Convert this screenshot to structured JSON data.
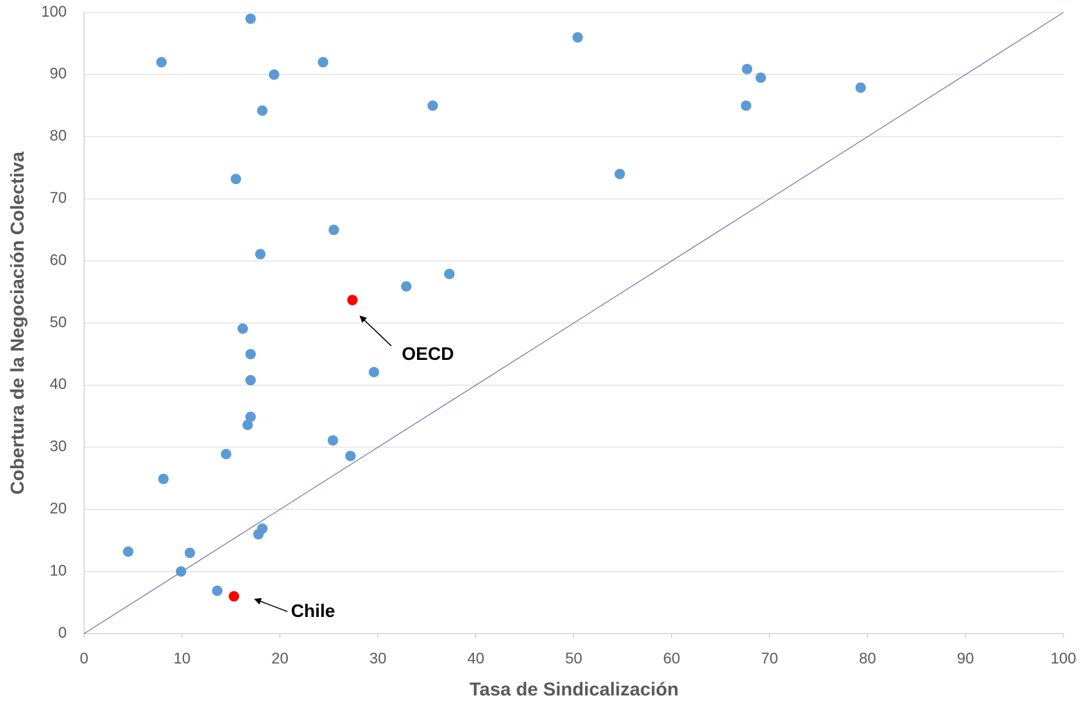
{
  "chart_data": {
    "type": "scatter",
    "x_label": "Tasa de Sindicalización",
    "y_label": "Cobertura de la Negociación Colectiva",
    "series": [
      {
        "color": "#5b9bd5",
        "x": [
          17.0,
          7.9,
          19.4,
          24.4,
          50.4,
          18.2,
          35.6,
          67.7,
          69.1,
          79.3,
          67.6,
          15.5,
          54.7,
          25.5,
          18.0,
          37.3,
          32.9,
          16.2,
          17.0,
          17.0,
          29.6,
          17.0,
          16.7,
          25.4,
          27.2,
          14.5,
          8.1,
          18.2,
          17.8,
          4.5,
          10.8,
          9.9,
          13.6
        ],
        "values": [
          99.0,
          92.0,
          90.0,
          92.0,
          96.0,
          84.2,
          85.0,
          90.9,
          89.5,
          87.9,
          85.0,
          73.2,
          74.0,
          65.0,
          61.1,
          57.9,
          55.9,
          49.1,
          45.0,
          40.8,
          42.1,
          34.9,
          33.6,
          31.1,
          28.6,
          28.9,
          24.9,
          16.9,
          16.0,
          13.2,
          13.0,
          10.0,
          6.9
        ]
      },
      {
        "color": "#ff0000",
        "x": [
          27.4,
          15.3
        ],
        "values": [
          53.7,
          6.0
        ]
      }
    ],
    "annotations": [
      "OECD",
      "Chile"
    ],
    "diagonal": true,
    "xlim": [
      0,
      100
    ],
    "xticks": [
      0,
      10,
      20,
      30,
      40,
      50,
      60,
      70,
      80,
      90,
      100
    ],
    "ylim": [
      0,
      100
    ],
    "yticks": [
      0,
      10,
      20,
      30,
      40,
      50,
      60,
      70,
      80,
      90,
      100
    ],
    "grid": true
  }
}
